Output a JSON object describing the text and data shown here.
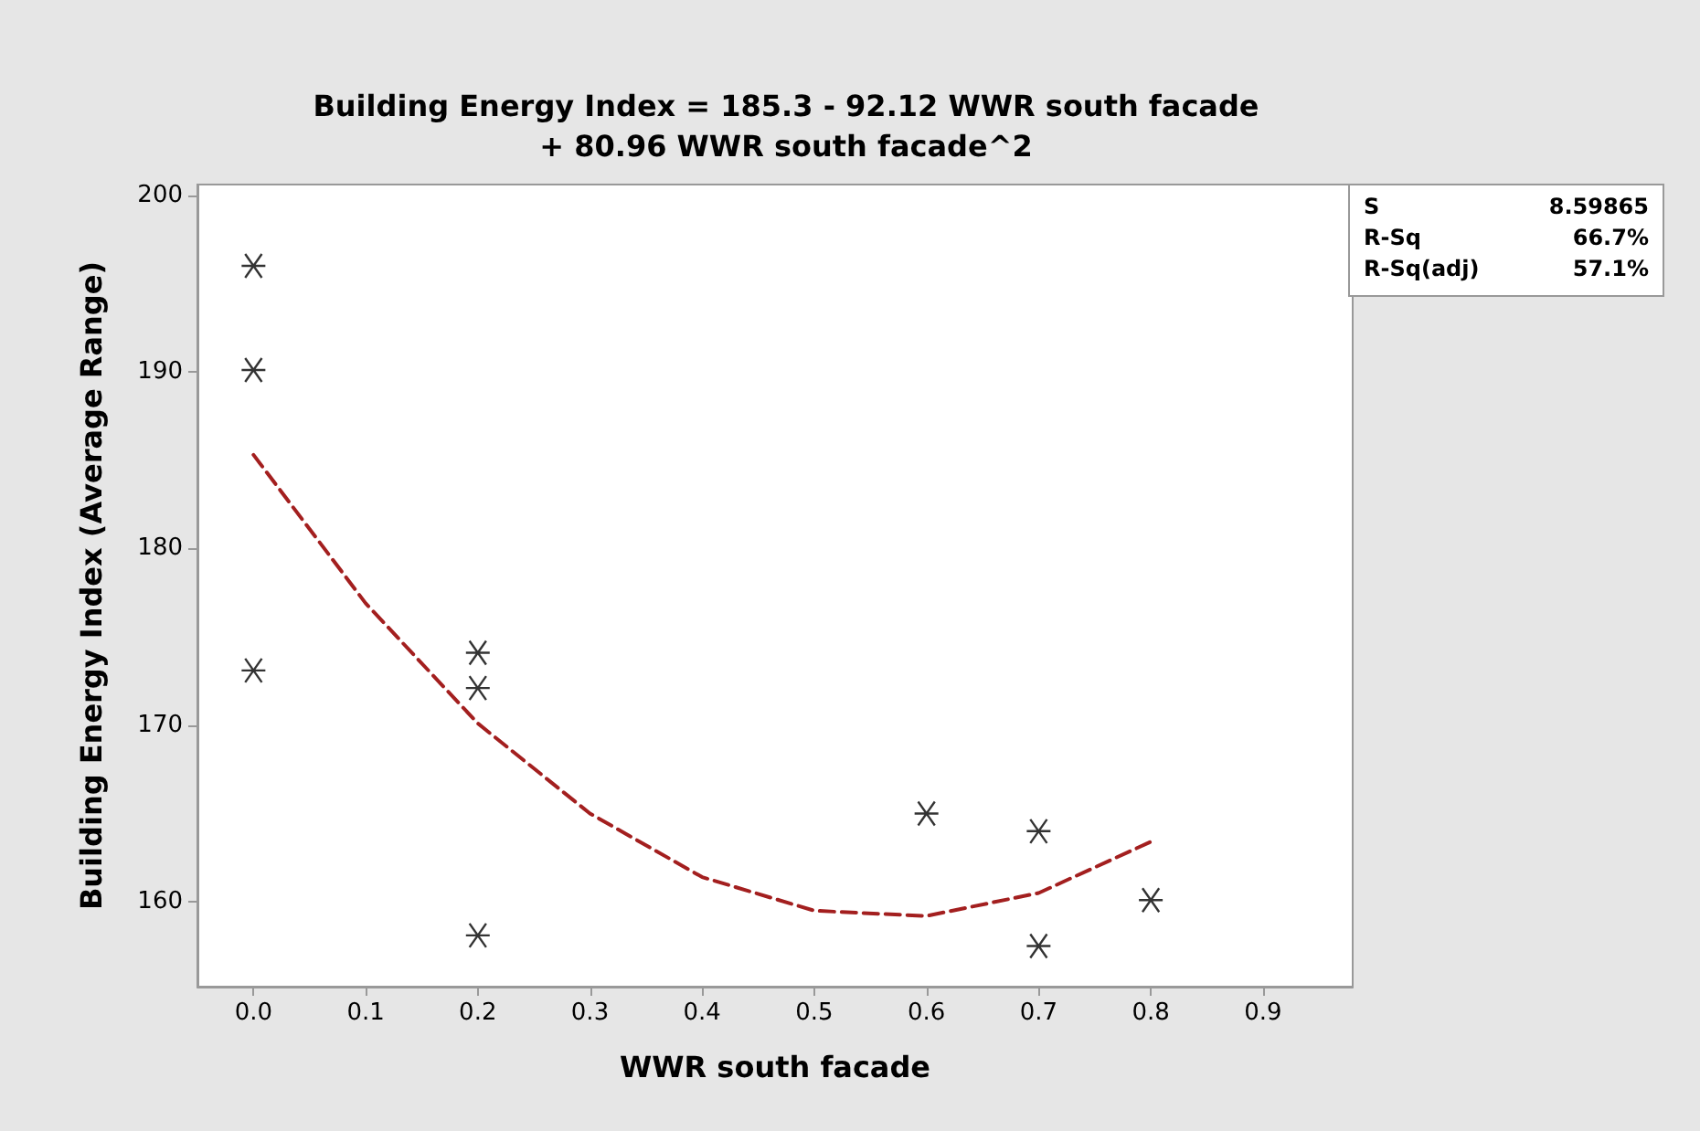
{
  "chart_data": {
    "type": "scatter",
    "title": "Building Energy Index = 185.3 - 92.12 WWR south facade\n+ 80.96 WWR south facade^2",
    "xlabel": "WWR south facade",
    "ylabel": "Building Energy Index (Average Range)",
    "annotations": [
      "S 8.59865",
      "R-Sq 66.7%",
      "R-Sq(adj) 57.1%"
    ],
    "series": [
      {
        "color": "#000000",
        "marker": "cross",
        "x": [
          0,
          0,
          0,
          0.2,
          0.2,
          0.2,
          0.6,
          0.7,
          0.7,
          0.8
        ],
        "values": [
          196,
          190.1,
          173.1,
          174.1,
          172.1,
          158.1,
          165,
          164,
          157.5,
          160.1
        ]
      },
      {
        "type": "line",
        "color": "#a31f1f",
        "marker": "none",
        "line_style": "dashed",
        "x": [
          0,
          0.1,
          0.2,
          0.3,
          0.4,
          0.5,
          0.6,
          0.7,
          0.8
        ],
        "values": [
          185.3,
          176.9,
          170.1,
          165,
          161.4,
          159.5,
          159.2,
          160.5,
          163.4
        ]
      }
    ],
    "xlim": [
      -0.05,
      0.98
    ],
    "ylim": [
      155.2,
      200.6
    ],
    "xticks": [
      {
        "value": 0,
        "label": "0.0"
      },
      0.1,
      0.2,
      0.3,
      0.4,
      0.5,
      0.6,
      0.7,
      0.8,
      0.9
    ],
    "yticks": [
      160,
      170,
      180,
      190,
      200
    ],
    "grid": false
  }
}
